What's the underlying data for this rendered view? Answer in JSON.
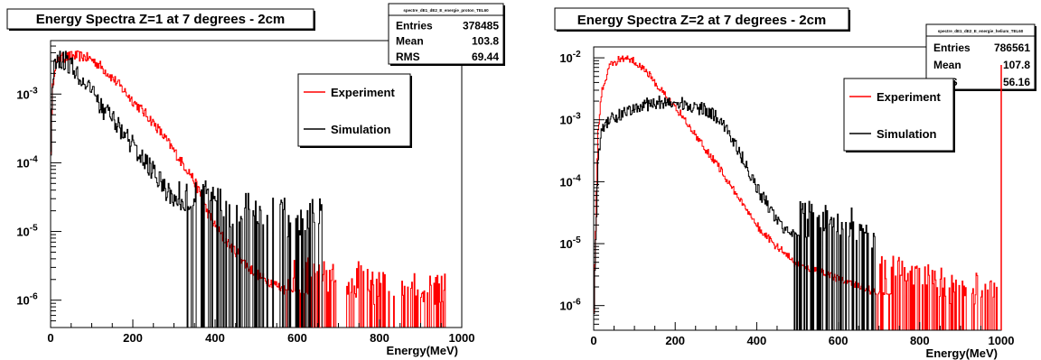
{
  "colors": {
    "experiment": "#ff0000",
    "simulation": "#000000"
  },
  "chart_data": [
    {
      "type": "line",
      "title": "Energy Spectra Z=1 at 7 degrees - 2cm",
      "xlabel": "Energy(MeV)",
      "ylabel": "",
      "xlim": [
        0,
        1000
      ],
      "ylim": [
        4e-07,
        0.006
      ],
      "yscale": "log",
      "x_ticks": [
        "0",
        "200",
        "400",
        "600",
        "800",
        "1000"
      ],
      "y_ticks": [
        {
          "value": 1e-06,
          "base": "10",
          "exp": "-6"
        },
        {
          "value": 1e-05,
          "base": "10",
          "exp": "-5"
        },
        {
          "value": 0.0001,
          "base": "10",
          "exp": "-4"
        },
        {
          "value": 0.001,
          "base": "10",
          "exp": "-3"
        }
      ],
      "stats": {
        "name": "spectre_dE1_dE2_E_energie_proton_TEL60",
        "rows": [
          {
            "label": "Entries",
            "value": "378485"
          },
          {
            "label": "Mean",
            "value": "103.8"
          },
          {
            "label": "RMS",
            "value": "69.44"
          }
        ]
      },
      "legend_position": "top-right",
      "series": [
        {
          "name": "Experiment",
          "color": "#ff0000",
          "points": [
            [
              0,
              0.0001
            ],
            [
              5,
              0.0012
            ],
            [
              10,
              0.0025
            ],
            [
              20,
              0.0032
            ],
            [
              40,
              0.0035
            ],
            [
              60,
              0.0036
            ],
            [
              80,
              0.0035
            ],
            [
              100,
              0.0032
            ],
            [
              120,
              0.0026
            ],
            [
              140,
              0.002
            ],
            [
              160,
              0.0015
            ],
            [
              180,
              0.0011
            ],
            [
              200,
              0.0008
            ],
            [
              220,
              0.0006
            ],
            [
              240,
              0.00045
            ],
            [
              260,
              0.00032
            ],
            [
              280,
              0.00022
            ],
            [
              300,
              0.00015
            ],
            [
              320,
              0.0001
            ],
            [
              340,
              7e-05
            ],
            [
              360,
              4e-05
            ],
            [
              380,
              2e-05
            ],
            [
              400,
              1.2e-05
            ],
            [
              420,
              8e-06
            ],
            [
              440,
              6e-06
            ],
            [
              460,
              4.5e-06
            ],
            [
              480,
              3e-06
            ],
            [
              500,
              2.5e-06
            ],
            [
              520,
              2e-06
            ],
            [
              540,
              1.8e-06
            ],
            [
              560,
              1.5e-06
            ],
            [
              600,
              1.2e-06
            ],
            [
              650,
              1e-06
            ],
            [
              700,
              8e-07
            ],
            [
              750,
              7e-07
            ],
            [
              800,
              6e-07
            ],
            [
              850,
              5e-07
            ],
            [
              900,
              5e-07
            ],
            [
              960,
              5e-07
            ]
          ],
          "noise": 0.18,
          "gap_threshold": 1.2e-06,
          "spike_after": 560
        },
        {
          "name": "Simulation",
          "color": "#000000",
          "points": [
            [
              0,
              0.0001
            ],
            [
              5,
              0.0015
            ],
            [
              10,
              0.003
            ],
            [
              20,
              0.0034
            ],
            [
              40,
              0.003
            ],
            [
              60,
              0.0022
            ],
            [
              80,
              0.0015
            ],
            [
              100,
              0.001
            ],
            [
              120,
              0.0007
            ],
            [
              140,
              0.0005
            ],
            [
              160,
              0.00035
            ],
            [
              180,
              0.00025
            ],
            [
              200,
              0.00018
            ],
            [
              220,
              0.00012
            ],
            [
              240,
              9e-05
            ],
            [
              260,
              6e-05
            ],
            [
              280,
              4e-05
            ],
            [
              300,
              3e-05
            ],
            [
              320,
              2.2e-05
            ],
            [
              340,
              1.8e-05
            ],
            [
              360,
              1.5e-05
            ],
            [
              400,
              1e-05
            ],
            [
              450,
              8e-06
            ],
            [
              500,
              6.5e-06
            ],
            [
              550,
              6e-06
            ],
            [
              600,
              6e-06
            ],
            [
              640,
              6e-06
            ],
            [
              660,
              6e-06
            ]
          ],
          "noise": 0.35,
          "gap_threshold": 2e-05,
          "spike_after": 270
        }
      ]
    },
    {
      "type": "line",
      "title": "Energy Spectra Z=2 at 7 degrees - 2cm",
      "xlabel": "Energy(MeV)",
      "ylabel": "",
      "xlim": [
        0,
        1000
      ],
      "ylim": [
        4e-07,
        0.015
      ],
      "yscale": "log",
      "x_ticks": [
        "0",
        "200",
        "400",
        "600",
        "800",
        "1000"
      ],
      "y_ticks": [
        {
          "value": 1e-06,
          "base": "10",
          "exp": "-6"
        },
        {
          "value": 1e-05,
          "base": "10",
          "exp": "-5"
        },
        {
          "value": 0.0001,
          "base": "10",
          "exp": "-4"
        },
        {
          "value": 0.001,
          "base": "10",
          "exp": "-3"
        },
        {
          "value": 0.01,
          "base": "10",
          "exp": "-2"
        }
      ],
      "stats": {
        "name": "spectre_dE1_dE2_E_energie_helium_TEL60",
        "rows": [
          {
            "label": "Entries",
            "value": "786561"
          },
          {
            "label": "Mean",
            "value": "107.8"
          },
          {
            "label": "RMS",
            "value": "56.16"
          }
        ]
      },
      "legend_position": "top-right",
      "series": [
        {
          "name": "Experiment",
          "color": "#ff0000",
          "points": [
            [
              0,
              5e-07
            ],
            [
              10,
              0.0005
            ],
            [
              20,
              0.003
            ],
            [
              40,
              0.0075
            ],
            [
              60,
              0.0092
            ],
            [
              80,
              0.0098
            ],
            [
              100,
              0.009
            ],
            [
              120,
              0.007
            ],
            [
              140,
              0.005
            ],
            [
              160,
              0.0034
            ],
            [
              180,
              0.0024
            ],
            [
              200,
              0.0016
            ],
            [
              220,
              0.0011
            ],
            [
              240,
              0.0007
            ],
            [
              260,
              0.00045
            ],
            [
              280,
              0.0003
            ],
            [
              300,
              0.0002
            ],
            [
              320,
              0.00013
            ],
            [
              340,
              8e-05
            ],
            [
              360,
              5e-05
            ],
            [
              380,
              3e-05
            ],
            [
              400,
              2e-05
            ],
            [
              420,
              1.4e-05
            ],
            [
              440,
              1e-05
            ],
            [
              460,
              8e-06
            ],
            [
              480,
              6e-06
            ],
            [
              500,
              4.5e-06
            ],
            [
              540,
              4e-06
            ],
            [
              580,
              3e-06
            ],
            [
              620,
              2.5e-06
            ],
            [
              660,
              2e-06
            ],
            [
              700,
              1.5e-06
            ],
            [
              760,
              1.2e-06
            ],
            [
              820,
              1e-06
            ],
            [
              880,
              8e-07
            ],
            [
              940,
              7e-07
            ],
            [
              1000,
              6e-07
            ]
          ],
          "noise": 0.15,
          "gap_threshold": 1.5e-06,
          "spike_after": 560
        },
        {
          "name": "Simulation",
          "color": "#000000",
          "points": [
            [
              0,
              5e-07
            ],
            [
              10,
              0.0002
            ],
            [
              20,
              0.0007
            ],
            [
              40,
              0.001
            ],
            [
              80,
              0.0014
            ],
            [
              120,
              0.0017
            ],
            [
              160,
              0.0019
            ],
            [
              200,
              0.0019
            ],
            [
              240,
              0.0017
            ],
            [
              280,
              0.0014
            ],
            [
              300,
              0.0011
            ],
            [
              320,
              0.0008
            ],
            [
              340,
              0.0005
            ],
            [
              360,
              0.00028
            ],
            [
              380,
              0.00015
            ],
            [
              400,
              8e-05
            ],
            [
              420,
              5e-05
            ],
            [
              440,
              3e-05
            ],
            [
              460,
              1.8e-05
            ],
            [
              500,
              1.2e-05
            ],
            [
              540,
              1e-05
            ],
            [
              580,
              8e-06
            ],
            [
              620,
              7e-06
            ],
            [
              660,
              6e-06
            ],
            [
              690,
              5e-06
            ]
          ],
          "noise": 0.25,
          "gap_threshold": 1.2e-05,
          "spike_after": 440
        }
      ]
    }
  ]
}
